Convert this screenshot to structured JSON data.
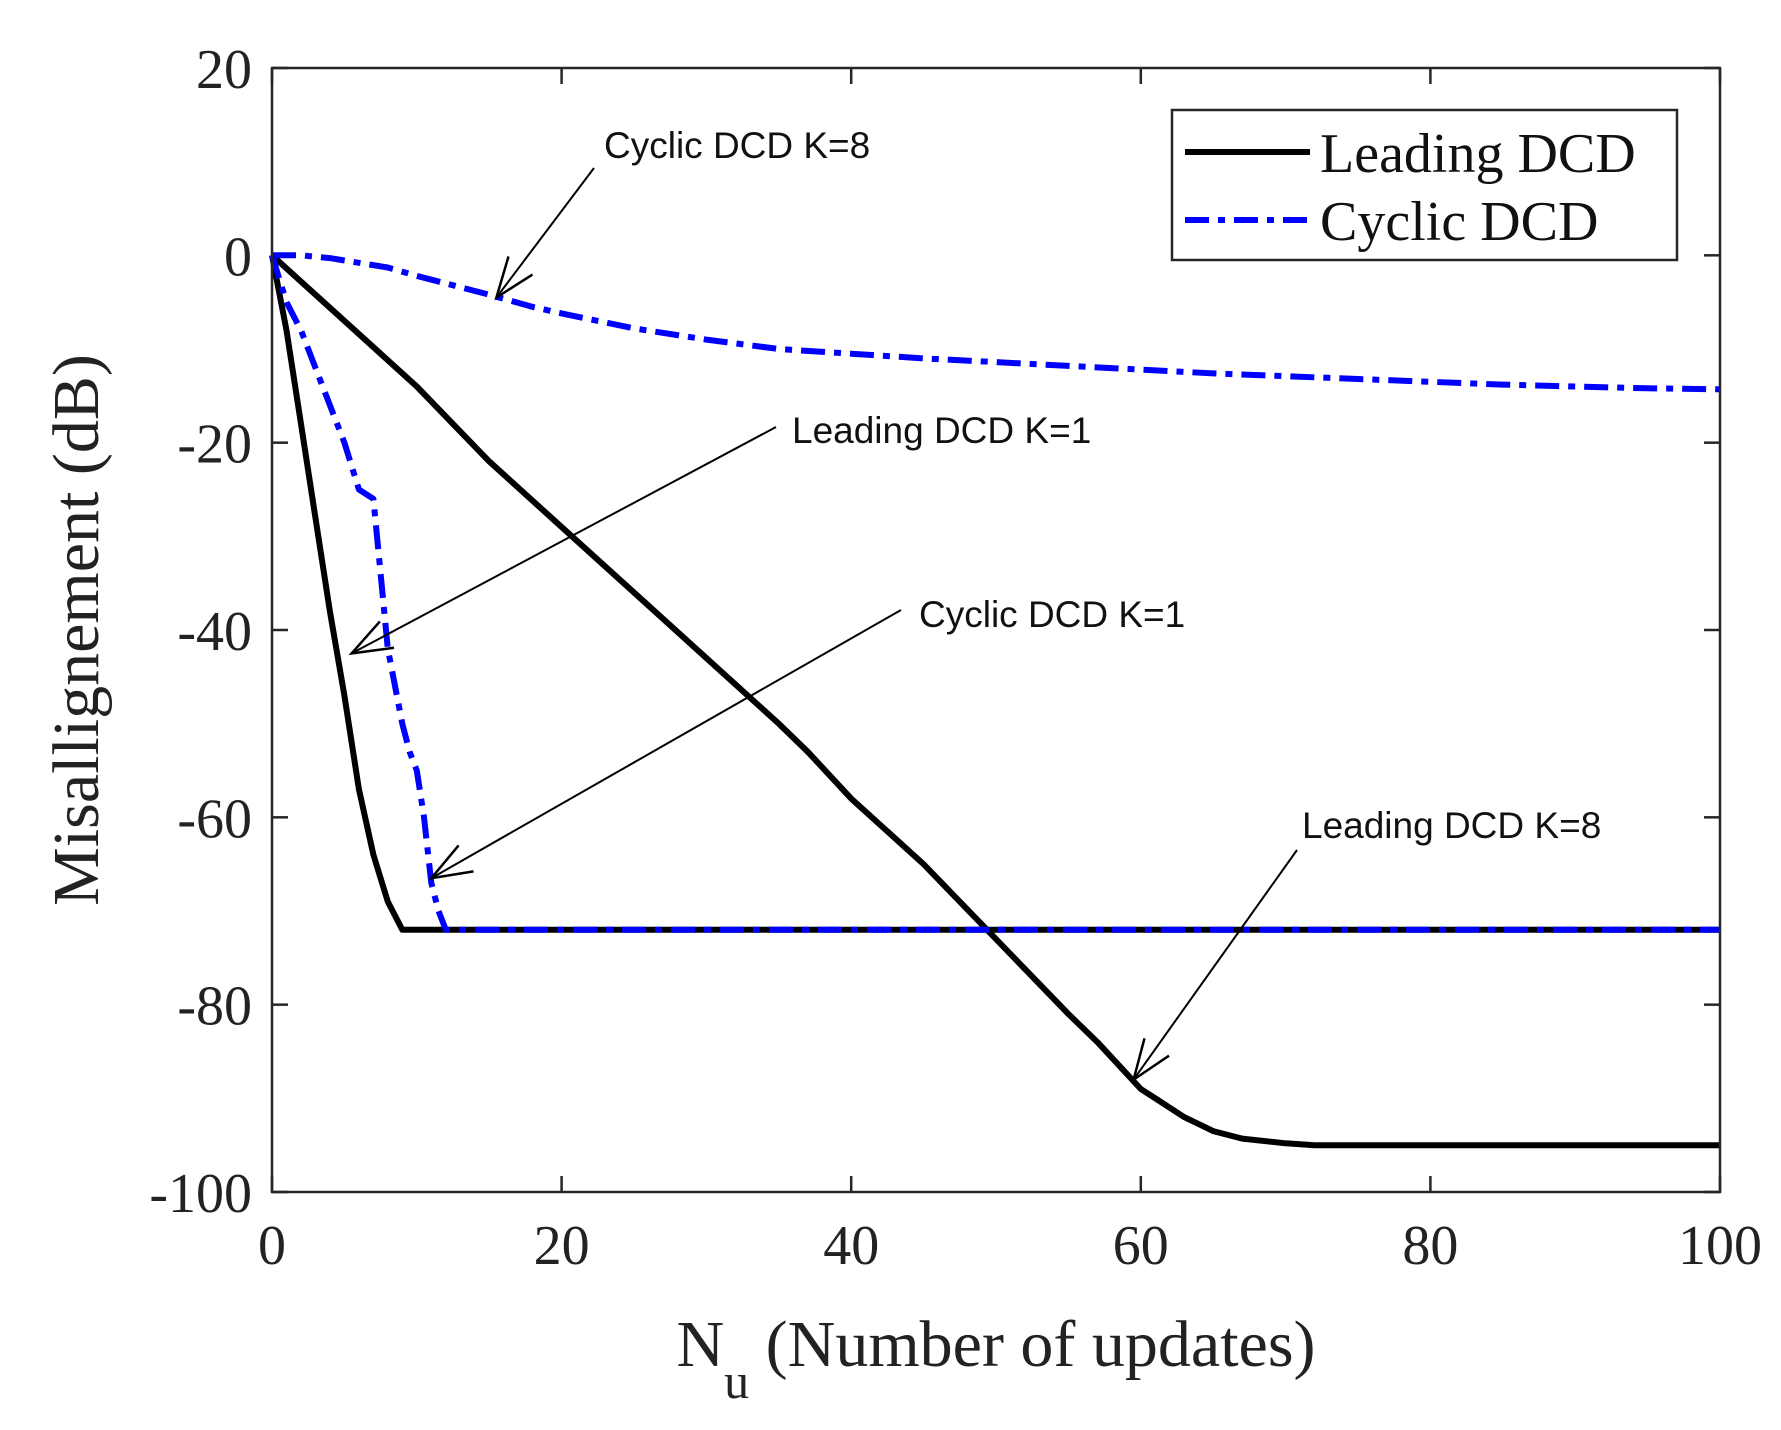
{
  "chart_data": {
    "type": "line",
    "title": "",
    "xlabel_main": "N",
    "xlabel_sub": "u",
    "xlabel_rest": " (Number of updates)",
    "ylabel": "Misallignement (dB)",
    "xlim": [
      0,
      100
    ],
    "ylim": [
      -100,
      20
    ],
    "xticks": [
      0,
      20,
      40,
      60,
      80,
      100
    ],
    "yticks": [
      20,
      0,
      -20,
      -40,
      -60,
      -80,
      -100
    ],
    "xtick_labels": [
      "0",
      "20",
      "40",
      "60",
      "80",
      "100"
    ],
    "ytick_labels": [
      "20",
      "0",
      "-20",
      "-40",
      "-60",
      "-80",
      "-100"
    ],
    "legend_position": "top-right",
    "series": [
      {
        "name": "Leading DCD",
        "color": "#000000",
        "style": "solid",
        "label": "Leading DCD K=1",
        "x": [
          0,
          1,
          2,
          3,
          4,
          5,
          6,
          7,
          8,
          9,
          10,
          11,
          12,
          100
        ],
        "y": [
          0,
          -8,
          -18,
          -28,
          -38,
          -47,
          -57,
          -64,
          -69,
          -72,
          -72,
          -72,
          -72,
          -72
        ]
      },
      {
        "name": "Leading DCD",
        "color": "#000000",
        "style": "solid",
        "label": "Leading DCD K=8",
        "x": [
          0,
          5,
          10,
          15,
          20,
          25,
          30,
          35,
          37,
          40,
          45,
          50,
          55,
          57,
          60,
          61,
          63,
          65,
          67,
          70,
          72,
          100
        ],
        "y": [
          0,
          -7,
          -14,
          -22,
          -29,
          -36,
          -43,
          -50,
          -53,
          -58,
          -65,
          -73,
          -81,
          -84,
          -89,
          -90,
          -92,
          -93.5,
          -94.3,
          -94.8,
          -95,
          -95
        ]
      },
      {
        "name": "Cyclic DCD",
        "color": "#0000ff",
        "style": "dashdot",
        "label": "Cyclic DCD K=1",
        "x": [
          0,
          1,
          2,
          3,
          4,
          5,
          6,
          7,
          8,
          9,
          9.5,
          10,
          10.5,
          11,
          11.5,
          12,
          100
        ],
        "y": [
          0,
          -5,
          -8,
          -12,
          -16,
          -20,
          -25,
          -26,
          -42,
          -50,
          -53,
          -55,
          -60,
          -67,
          -70,
          -72,
          -72
        ]
      },
      {
        "name": "Cyclic DCD",
        "color": "#0000ff",
        "style": "dashdot",
        "label": "Cyclic DCD K=8",
        "x": [
          0,
          2,
          4,
          6,
          8,
          10,
          12,
          15,
          18,
          20,
          25,
          30,
          35,
          40,
          45,
          50,
          55,
          60,
          65,
          70,
          75,
          80,
          85,
          90,
          95,
          100
        ],
        "y": [
          0,
          0,
          -0.3,
          -0.8,
          -1.3,
          -2.2,
          -3,
          -4.2,
          -5.5,
          -6.2,
          -7.8,
          -9,
          -10,
          -10.5,
          -11,
          -11.4,
          -11.8,
          -12.2,
          -12.6,
          -12.9,
          -13.2,
          -13.5,
          -13.8,
          -14,
          -14.2,
          -14.3
        ]
      }
    ],
    "legend": [
      {
        "label": "Leading DCD",
        "color": "#000000",
        "style": "solid"
      },
      {
        "label": "Cyclic DCD",
        "color": "#0000ff",
        "style": "dashdot"
      }
    ],
    "annotations": [
      {
        "text": "Cyclic DCD K=8",
        "point_x": 15.5,
        "point_y": -4.5
      },
      {
        "text": "Leading DCD K=1",
        "point_x": 5.5,
        "point_y": -42.5
      },
      {
        "text": "Cyclic DCD K=1",
        "point_x": 11,
        "point_y": -66.5
      },
      {
        "text": "Leading DCD K=8",
        "point_x": 59.5,
        "point_y": -88
      }
    ]
  }
}
